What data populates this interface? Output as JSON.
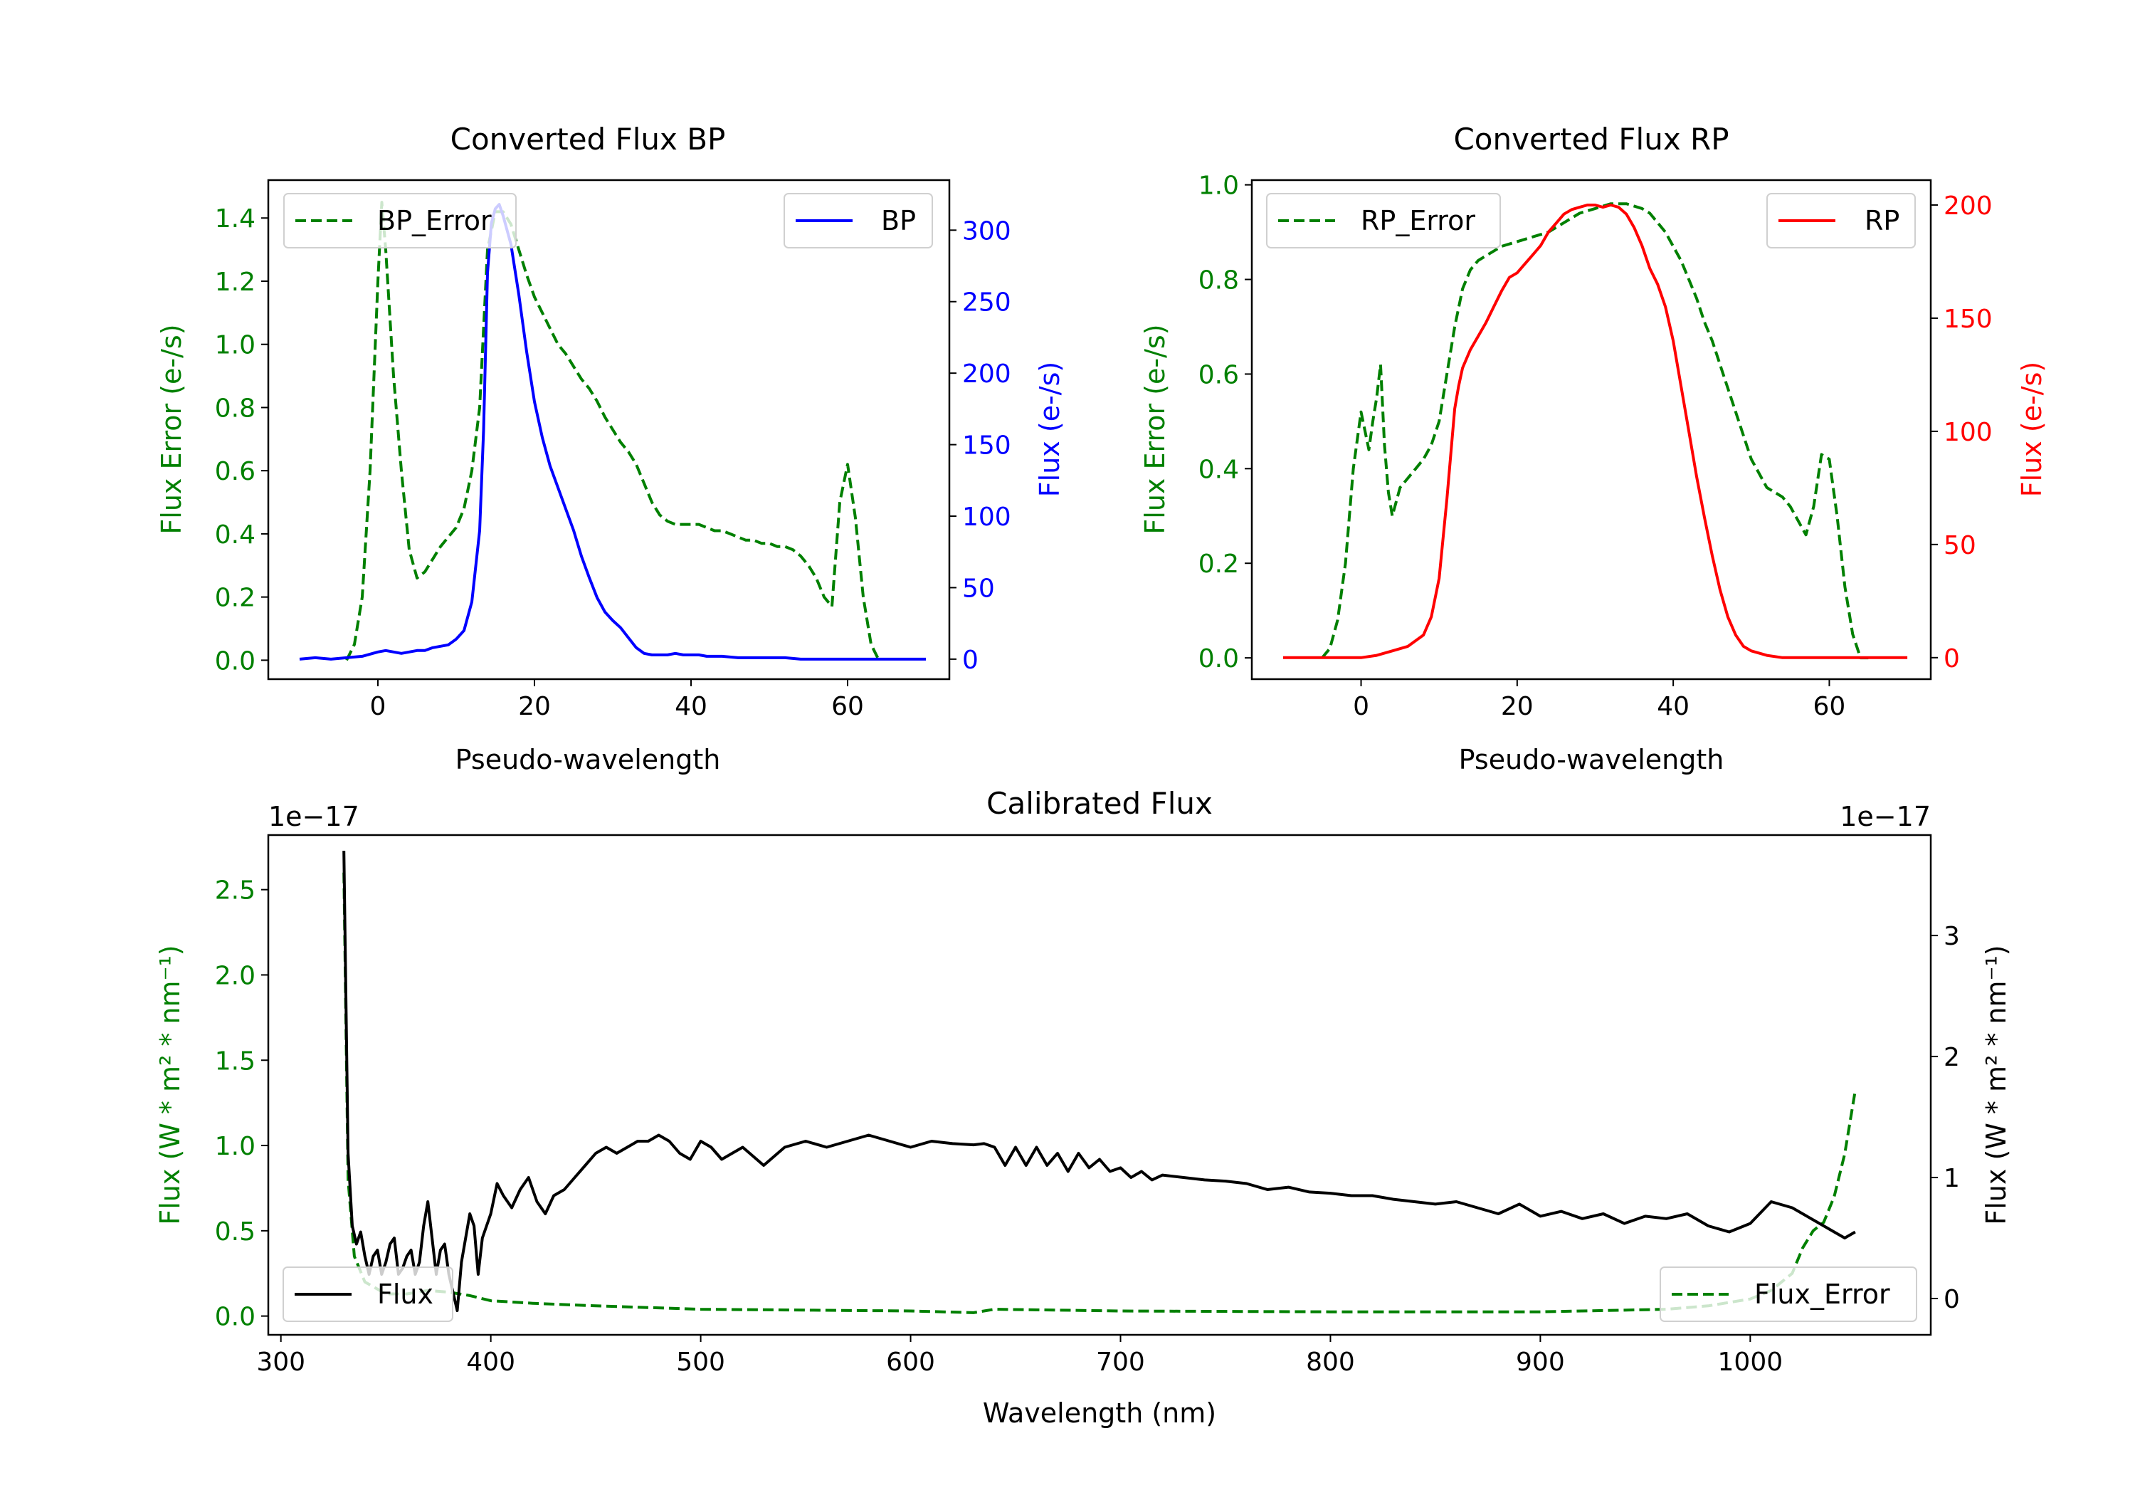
{
  "colors": {
    "green": "#008000",
    "blue": "#0000ff",
    "red": "#ff0000",
    "black": "#000000"
  },
  "chart_data": [
    {
      "id": "bp",
      "type": "line",
      "title": "Converted Flux BP",
      "xlabel": "Pseudo-wavelength",
      "ylabel_left": "Flux Error (e-/s)",
      "ylabel_right": "Flux (e-/s)",
      "xlim": [
        -14,
        73
      ],
      "ylim_left": [
        -0.06,
        1.52
      ],
      "ylim_right": [
        -14,
        335
      ],
      "xticks": [
        0,
        20,
        40,
        60
      ],
      "xtick_labels": [
        "0",
        "20",
        "40",
        "60"
      ],
      "yticks_left": [
        0,
        0.2,
        0.4,
        0.6,
        0.8,
        1.0,
        1.2,
        1.4
      ],
      "ytick_labels_left": [
        "0.0",
        "0.2",
        "0.4",
        "0.6",
        "0.8",
        "1.0",
        "1.2",
        "1.4"
      ],
      "yticks_right": [
        0,
        50,
        100,
        150,
        200,
        250,
        300
      ],
      "ytick_labels_right": [
        "0",
        "50",
        "100",
        "150",
        "200",
        "250",
        "300"
      ],
      "legend_left": "top-left",
      "legend_right": "top-right",
      "series": [
        {
          "name": "BP_Error",
          "axis": "left",
          "color": "green",
          "style": "dashed",
          "x": [
            -4,
            -3,
            -2,
            -1,
            0,
            0.5,
            1,
            2,
            3,
            4,
            5,
            6,
            7,
            8,
            9,
            10,
            11,
            12,
            13,
            14,
            15,
            16,
            17,
            18,
            19,
            20,
            21,
            22,
            23,
            24,
            25,
            26,
            27,
            28,
            29,
            30,
            31,
            32,
            33,
            34,
            35,
            36,
            37,
            38,
            39,
            40,
            41,
            42,
            43,
            44,
            45,
            46,
            47,
            48,
            49,
            50,
            51,
            52,
            53,
            54,
            55,
            56,
            57,
            58,
            59,
            60,
            61,
            62,
            63,
            64
          ],
          "y": [
            0.0,
            0.05,
            0.2,
            0.6,
            1.2,
            1.45,
            1.3,
            0.9,
            0.6,
            0.35,
            0.26,
            0.28,
            0.32,
            0.36,
            0.39,
            0.42,
            0.48,
            0.6,
            0.8,
            1.3,
            1.42,
            1.42,
            1.38,
            1.3,
            1.22,
            1.15,
            1.1,
            1.05,
            1.0,
            0.97,
            0.93,
            0.89,
            0.86,
            0.82,
            0.77,
            0.73,
            0.69,
            0.66,
            0.62,
            0.56,
            0.5,
            0.46,
            0.44,
            0.43,
            0.43,
            0.43,
            0.43,
            0.42,
            0.41,
            0.41,
            0.4,
            0.39,
            0.38,
            0.38,
            0.37,
            0.37,
            0.36,
            0.36,
            0.35,
            0.33,
            0.3,
            0.26,
            0.2,
            0.17,
            0.5,
            0.62,
            0.45,
            0.2,
            0.05,
            0.0
          ]
        },
        {
          "name": "BP",
          "axis": "right",
          "color": "blue",
          "style": "solid",
          "x": [
            -10,
            -8,
            -6,
            -4,
            -2,
            0,
            1,
            2,
            3,
            4,
            5,
            6,
            7,
            8,
            9,
            10,
            11,
            12,
            13,
            13.5,
            14,
            14.5,
            15,
            15.5,
            16,
            17,
            18,
            19,
            20,
            21,
            22,
            23,
            24,
            25,
            26,
            27,
            28,
            29,
            30,
            31,
            32,
            33,
            34,
            35,
            36,
            37,
            38,
            39,
            40,
            41,
            42,
            44,
            46,
            48,
            50,
            52,
            54,
            56,
            58,
            60,
            62,
            64,
            66,
            68,
            70
          ],
          "y": [
            0,
            1,
            0,
            1,
            2,
            5,
            6,
            5,
            4,
            5,
            6,
            6,
            8,
            9,
            10,
            14,
            20,
            40,
            90,
            160,
            270,
            305,
            315,
            318,
            310,
            290,
            255,
            215,
            180,
            155,
            135,
            120,
            105,
            90,
            72,
            57,
            43,
            33,
            27,
            22,
            15,
            8,
            4,
            3,
            3,
            3,
            4,
            3,
            3,
            3,
            2,
            2,
            1,
            1,
            1,
            1,
            0,
            0,
            0,
            0,
            0,
            0,
            0,
            0,
            0
          ]
        }
      ]
    },
    {
      "id": "rp",
      "type": "line",
      "title": "Converted Flux RP",
      "xlabel": "Pseudo-wavelength",
      "ylabel_left": "Flux Error (e-/s)",
      "ylabel_right": "Flux (e-/s)",
      "xlim": [
        -14,
        73
      ],
      "ylim_left": [
        -0.045,
        1.01
      ],
      "ylim_right": [
        -9.5,
        211
      ],
      "xticks": [
        0,
        20,
        40,
        60
      ],
      "xtick_labels": [
        "0",
        "20",
        "40",
        "60"
      ],
      "yticks_left": [
        0,
        0.2,
        0.4,
        0.6,
        0.8,
        1.0
      ],
      "ytick_labels_left": [
        "0.0",
        "0.2",
        "0.4",
        "0.6",
        "0.8",
        "1.0"
      ],
      "yticks_right": [
        0,
        50,
        100,
        150,
        200
      ],
      "ytick_labels_right": [
        "0",
        "50",
        "100",
        "150",
        "200"
      ],
      "legend_left": "top-left",
      "legend_right": "top-right",
      "series": [
        {
          "name": "RP_Error",
          "axis": "left",
          "color": "green",
          "style": "dashed",
          "x": [
            -5,
            -4,
            -3,
            -2,
            -1,
            0,
            0.5,
            1,
            1.5,
            2,
            2.5,
            3,
            3.5,
            4,
            5,
            6,
            7,
            8,
            9,
            10,
            11,
            12,
            13,
            14,
            15,
            16,
            17,
            18,
            19,
            20,
            22,
            24,
            26,
            28,
            30,
            32,
            34,
            36,
            37,
            38,
            39,
            40,
            41,
            42,
            43,
            44,
            45,
            46,
            47,
            48,
            49,
            50,
            51,
            52,
            53,
            54,
            55,
            56,
            57,
            58,
            59,
            60,
            61,
            62,
            63,
            64,
            65
          ],
          "y": [
            0.0,
            0.02,
            0.08,
            0.2,
            0.4,
            0.52,
            0.48,
            0.44,
            0.5,
            0.55,
            0.62,
            0.45,
            0.35,
            0.3,
            0.36,
            0.38,
            0.4,
            0.42,
            0.45,
            0.5,
            0.6,
            0.7,
            0.78,
            0.82,
            0.84,
            0.85,
            0.86,
            0.87,
            0.875,
            0.88,
            0.89,
            0.9,
            0.92,
            0.94,
            0.95,
            0.96,
            0.96,
            0.95,
            0.94,
            0.92,
            0.9,
            0.87,
            0.84,
            0.8,
            0.76,
            0.71,
            0.67,
            0.62,
            0.57,
            0.52,
            0.47,
            0.42,
            0.39,
            0.36,
            0.35,
            0.34,
            0.32,
            0.29,
            0.26,
            0.32,
            0.43,
            0.42,
            0.3,
            0.15,
            0.05,
            0.0,
            0.0
          ]
        },
        {
          "name": "RP",
          "axis": "right",
          "color": "red",
          "style": "solid",
          "x": [
            -10,
            -6,
            -2,
            0,
            2,
            4,
            6,
            8,
            9,
            10,
            11,
            12,
            12.5,
            13,
            14,
            15,
            16,
            17,
            18,
            19,
            20,
            21,
            22,
            23,
            24,
            25,
            26,
            27,
            28,
            29,
            30,
            31,
            32,
            33,
            34,
            35,
            36,
            37,
            38,
            39,
            40,
            41,
            42,
            43,
            44,
            45,
            46,
            47,
            48,
            49,
            50,
            51,
            52,
            54,
            56,
            58,
            60,
            62,
            64,
            66,
            70
          ],
          "y": [
            0,
            0,
            0,
            0,
            1,
            3,
            5,
            10,
            18,
            35,
            70,
            110,
            120,
            128,
            136,
            142,
            148,
            155,
            162,
            168,
            170,
            174,
            178,
            182,
            188,
            192,
            196,
            198,
            199,
            200,
            200,
            199,
            200,
            199,
            196,
            190,
            182,
            172,
            165,
            155,
            140,
            120,
            100,
            80,
            62,
            45,
            30,
            18,
            10,
            5,
            3,
            2,
            1,
            0,
            0,
            0,
            0,
            0,
            0,
            0,
            0
          ]
        }
      ]
    },
    {
      "id": "cal",
      "type": "line",
      "title": "Calibrated Flux",
      "xlabel": "Wavelength (nm)",
      "ylabel_left": "Flux (W * m² * nm⁻¹)",
      "ylabel_right": "Flux (W * m² * nm⁻¹)",
      "offset_left": "1e−17",
      "offset_right": "1e−17",
      "xlim": [
        294,
        1086
      ],
      "ylim_left": [
        -0.11,
        2.82
      ],
      "ylim_right": [
        -0.3,
        3.83
      ],
      "xticks": [
        300,
        400,
        500,
        600,
        700,
        800,
        900,
        1000
      ],
      "xtick_labels": [
        "300",
        "400",
        "500",
        "600",
        "700",
        "800",
        "900",
        "1000"
      ],
      "yticks_left": [
        0,
        0.5,
        1.0,
        1.5,
        2.0,
        2.5
      ],
      "ytick_labels_left": [
        "0.0",
        "0.5",
        "1.0",
        "1.5",
        "2.0",
        "2.5"
      ],
      "yticks_right": [
        0,
        1,
        2,
        3
      ],
      "ytick_labels_right": [
        "0",
        "1",
        "2",
        "3"
      ],
      "legend_left": "bottom-right",
      "legend_right": "bottom-left",
      "series": [
        {
          "name": "Flux_Error",
          "axis": "left",
          "color": "green",
          "style": "dashed",
          "x": [
            330,
            332,
            335,
            340,
            350,
            360,
            370,
            380,
            390,
            400,
            420,
            450,
            500,
            550,
            600,
            630,
            640,
            700,
            800,
            900,
            960,
            980,
            1000,
            1010,
            1020,
            1025,
            1030,
            1035,
            1040,
            1045,
            1050
          ],
          "y": [
            2.6,
            0.8,
            0.35,
            0.2,
            0.13,
            0.13,
            0.15,
            0.14,
            0.12,
            0.09,
            0.075,
            0.06,
            0.04,
            0.035,
            0.03,
            0.02,
            0.04,
            0.03,
            0.025,
            0.025,
            0.04,
            0.06,
            0.1,
            0.15,
            0.25,
            0.4,
            0.5,
            0.55,
            0.7,
            0.95,
            1.32
          ]
        },
        {
          "name": "Flux",
          "axis": "right",
          "color": "black",
          "style": "solid",
          "x": [
            330,
            332,
            334,
            336,
            338,
            340,
            342,
            344,
            346,
            348,
            350,
            352,
            354,
            356,
            358,
            360,
            362,
            364,
            366,
            368,
            370,
            372,
            374,
            376,
            378,
            380,
            382,
            384,
            386,
            388,
            390,
            392,
            394,
            396,
            398,
            400,
            403,
            406,
            410,
            414,
            418,
            422,
            426,
            430,
            435,
            440,
            445,
            450,
            455,
            460,
            465,
            470,
            475,
            480,
            485,
            490,
            495,
            500,
            505,
            510,
            515,
            520,
            530,
            540,
            550,
            560,
            570,
            580,
            590,
            600,
            610,
            620,
            630,
            635,
            640,
            645,
            650,
            655,
            660,
            665,
            670,
            675,
            680,
            685,
            690,
            695,
            700,
            705,
            710,
            715,
            720,
            730,
            740,
            750,
            760,
            770,
            780,
            790,
            800,
            810,
            820,
            830,
            840,
            850,
            860,
            870,
            880,
            890,
            900,
            910,
            920,
            930,
            940,
            950,
            960,
            970,
            980,
            990,
            1000,
            1010,
            1020,
            1030,
            1035,
            1040,
            1045,
            1050
          ],
          "y": [
            3.7,
            1.2,
            0.6,
            0.45,
            0.55,
            0.35,
            0.2,
            0.35,
            0.4,
            0.2,
            0.3,
            0.45,
            0.5,
            0.2,
            0.25,
            0.35,
            0.4,
            0.2,
            0.3,
            0.6,
            0.8,
            0.5,
            0.2,
            0.4,
            0.45,
            0.2,
            0.05,
            -0.1,
            0.3,
            0.5,
            0.7,
            0.6,
            0.2,
            0.5,
            0.6,
            0.7,
            0.95,
            0.85,
            0.75,
            0.9,
            1.0,
            0.8,
            0.7,
            0.85,
            0.9,
            1.0,
            1.1,
            1.2,
            1.25,
            1.2,
            1.25,
            1.3,
            1.3,
            1.35,
            1.3,
            1.2,
            1.15,
            1.3,
            1.25,
            1.15,
            1.2,
            1.25,
            1.1,
            1.25,
            1.3,
            1.25,
            1.3,
            1.35,
            1.3,
            1.25,
            1.3,
            1.28,
            1.27,
            1.28,
            1.25,
            1.1,
            1.25,
            1.1,
            1.25,
            1.1,
            1.2,
            1.05,
            1.2,
            1.08,
            1.15,
            1.05,
            1.08,
            1.0,
            1.05,
            0.98,
            1.02,
            1.0,
            0.98,
            0.97,
            0.95,
            0.9,
            0.92,
            0.88,
            0.87,
            0.85,
            0.85,
            0.82,
            0.8,
            0.78,
            0.8,
            0.75,
            0.7,
            0.78,
            0.68,
            0.72,
            0.66,
            0.7,
            0.62,
            0.68,
            0.66,
            0.7,
            0.6,
            0.55,
            0.62,
            0.8,
            0.75,
            0.65,
            0.6,
            0.55,
            0.5,
            0.55
          ]
        }
      ]
    }
  ]
}
